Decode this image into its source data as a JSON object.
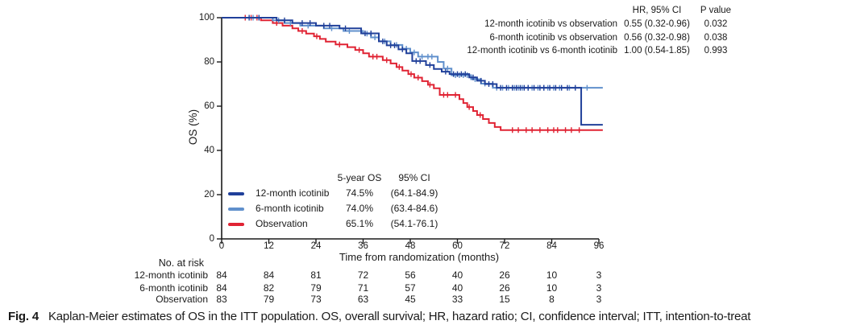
{
  "figure": {
    "caption_label": "Fig. 4",
    "caption_text": "Kaplan-Meier estimates of OS in the ITT population. OS, overall survival; HR, hazard ratio; CI, confidence interval; ITT, intention-to-treat"
  },
  "hr_table": {
    "header_ci": "HR, 95% CI",
    "header_p": "P value",
    "rows": [
      {
        "label": "12-month icotinib vs observation",
        "ci": "0.55 (0.32-0.96)",
        "p": "0.032"
      },
      {
        "label": "6-month icotinib vs observation",
        "ci": "0.56 (0.32-0.98)",
        "p": "0.038"
      },
      {
        "label": "12-month icotinib vs 6-month icotinib",
        "ci": "1.00 (0.54-1.85)",
        "p": "0.993"
      }
    ]
  },
  "legend": {
    "header_os": "5-year OS",
    "header_ci": "95% CI",
    "rows": [
      {
        "name": "12-month icotinib",
        "os": "74.5%",
        "ci": "(64.1-84.9)",
        "color": "#20409a"
      },
      {
        "name": "6-month icotinib",
        "os": "74.0%",
        "ci": "(63.4-84.6)",
        "color": "#6090cc"
      },
      {
        "name": "Observation",
        "os": "65.1%",
        "ci": "(54.1-76.1)",
        "color": "#e02333"
      }
    ]
  },
  "at_risk": {
    "title": "No. at risk",
    "rows": [
      {
        "label": "12-month icotinib",
        "counts": [
          84,
          84,
          81,
          72,
          56,
          40,
          26,
          10,
          3
        ]
      },
      {
        "label": "6-month icotinib",
        "counts": [
          84,
          82,
          79,
          71,
          57,
          40,
          26,
          10,
          3
        ]
      },
      {
        "label": "Observation",
        "counts": [
          83,
          79,
          73,
          63,
          45,
          33,
          15,
          8,
          3
        ]
      }
    ]
  },
  "chart_data": {
    "type": "line",
    "subtype": "kaplan-meier-step",
    "title": "",
    "xlabel": "Time from randomization (months)",
    "ylabel": "OS (%)",
    "xlim": [
      0,
      96
    ],
    "ylim": [
      0,
      100
    ],
    "x_ticks": [
      0,
      12,
      24,
      36,
      48,
      60,
      72,
      84,
      96
    ],
    "y_ticks": [
      0,
      20,
      40,
      60,
      80,
      100
    ],
    "grid": false,
    "end_month": 97,
    "axis_color": "#1a1a1a",
    "series": [
      {
        "name": "12-month icotinib",
        "color": "#20409a",
        "five_year_os": 74.5,
        "steps": [
          [
            0,
            100
          ],
          [
            14,
            98.8
          ],
          [
            18,
            97.6
          ],
          [
            24,
            96.4
          ],
          [
            30,
            95.2
          ],
          [
            35.5,
            92.9
          ],
          [
            40,
            89.3
          ],
          [
            42,
            87.5
          ],
          [
            45,
            85.7
          ],
          [
            47,
            83.9
          ],
          [
            48.5,
            80.4
          ],
          [
            52,
            78.6
          ],
          [
            54,
            76.8
          ],
          [
            56,
            75.6
          ],
          [
            58,
            74.5
          ],
          [
            63,
            73
          ],
          [
            65,
            71.5
          ],
          [
            67,
            70
          ],
          [
            70,
            68.3
          ],
          [
            91.5,
            51.6
          ]
        ],
        "censors": [
          [
            7,
            100
          ],
          [
            9.5,
            100
          ],
          [
            16,
            98.8
          ],
          [
            20.5,
            97.6
          ],
          [
            22.5,
            97.6
          ],
          [
            26,
            96.4
          ],
          [
            27.5,
            96.4
          ],
          [
            31.5,
            95.2
          ],
          [
            36.5,
            92.9
          ],
          [
            38,
            92.9
          ],
          [
            41,
            89.3
          ],
          [
            43,
            87.5
          ],
          [
            44,
            87.5
          ],
          [
            46,
            85.7
          ],
          [
            49.5,
            80.4
          ],
          [
            50.5,
            80.4
          ],
          [
            53,
            78.6
          ],
          [
            57,
            75.6
          ],
          [
            59,
            74.5
          ],
          [
            60,
            74.5
          ],
          [
            61,
            74.5
          ],
          [
            62,
            74.5
          ],
          [
            64,
            73
          ],
          [
            66,
            71.5
          ],
          [
            68,
            70
          ],
          [
            69,
            70
          ],
          [
            71,
            68.3
          ],
          [
            72.5,
            68.3
          ],
          [
            74,
            68.3
          ],
          [
            75,
            68.3
          ],
          [
            76,
            68.3
          ],
          [
            77,
            68.3
          ],
          [
            78,
            68.3
          ],
          [
            79.5,
            68.3
          ],
          [
            81,
            68.3
          ],
          [
            82,
            68.3
          ],
          [
            83.5,
            68.3
          ],
          [
            85,
            68.3
          ],
          [
            86.5,
            68.3
          ],
          [
            88,
            68.3
          ],
          [
            90,
            68.3
          ]
        ]
      },
      {
        "name": "6-month icotinib",
        "color": "#6090cc",
        "five_year_os": 74.0,
        "steps": [
          [
            0,
            100
          ],
          [
            13,
            98.8
          ],
          [
            16,
            97.6
          ],
          [
            20,
            96.4
          ],
          [
            26,
            95.2
          ],
          [
            31,
            94
          ],
          [
            36,
            92.8
          ],
          [
            38,
            91.1
          ],
          [
            40,
            89.3
          ],
          [
            43,
            87.7
          ],
          [
            46,
            86
          ],
          [
            48,
            84.3
          ],
          [
            50,
            82.4
          ],
          [
            55,
            80
          ],
          [
            56.5,
            77
          ],
          [
            58.5,
            74
          ],
          [
            63.5,
            72.2
          ],
          [
            66,
            70.2
          ],
          [
            69,
            68.3
          ]
        ],
        "censors": [
          [
            8,
            100
          ],
          [
            14.5,
            98.8
          ],
          [
            17.5,
            97.6
          ],
          [
            22,
            96.4
          ],
          [
            28,
            95.2
          ],
          [
            32.5,
            94
          ],
          [
            37,
            92.8
          ],
          [
            39,
            91.1
          ],
          [
            41.5,
            89.3
          ],
          [
            44.5,
            87.7
          ],
          [
            47,
            86
          ],
          [
            49,
            84.3
          ],
          [
            51,
            82.4
          ],
          [
            52.5,
            82.4
          ],
          [
            53.5,
            82.4
          ],
          [
            57.5,
            77
          ],
          [
            59.5,
            74
          ],
          [
            60.5,
            74
          ],
          [
            61.5,
            74
          ],
          [
            62.5,
            74
          ],
          [
            64.5,
            72.2
          ],
          [
            67,
            70.2
          ],
          [
            70,
            68.3
          ],
          [
            71.5,
            68.3
          ],
          [
            73,
            68.3
          ],
          [
            74.5,
            68.3
          ],
          [
            75.5,
            68.3
          ],
          [
            76.5,
            68.3
          ],
          [
            78,
            68.3
          ],
          [
            79,
            68.3
          ],
          [
            80.5,
            68.3
          ],
          [
            82,
            68.3
          ],
          [
            83,
            68.3
          ],
          [
            84.5,
            68.3
          ],
          [
            86,
            68.3
          ],
          [
            88.5,
            68.3
          ],
          [
            93,
            68.3
          ]
        ]
      },
      {
        "name": "Observation",
        "color": "#e02333",
        "five_year_os": 65.1,
        "steps": [
          [
            0,
            100
          ],
          [
            10,
            98.8
          ],
          [
            13,
            97.6
          ],
          [
            15.5,
            96.4
          ],
          [
            18,
            95.2
          ],
          [
            19.5,
            94
          ],
          [
            21.5,
            92.8
          ],
          [
            23.5,
            91.6
          ],
          [
            25,
            90.4
          ],
          [
            26.5,
            89.2
          ],
          [
            29,
            87.9
          ],
          [
            32,
            86.7
          ],
          [
            34,
            85.4
          ],
          [
            36,
            83.9
          ],
          [
            37.5,
            82.4
          ],
          [
            41,
            80.8
          ],
          [
            43,
            79.3
          ],
          [
            44.5,
            77.7
          ],
          [
            46,
            76.1
          ],
          [
            47.5,
            74.5
          ],
          [
            49,
            72.9
          ],
          [
            51,
            71.3
          ],
          [
            52.5,
            69.7
          ],
          [
            54,
            68.1
          ],
          [
            55.5,
            65.1
          ],
          [
            60.5,
            63.2
          ],
          [
            61.5,
            61.4
          ],
          [
            62.5,
            59.6
          ],
          [
            64,
            57.8
          ],
          [
            65,
            56
          ],
          [
            66.5,
            54.2
          ],
          [
            68,
            52.4
          ],
          [
            69.5,
            50.6
          ],
          [
            71,
            49.2
          ]
        ],
        "censors": [
          [
            6,
            100
          ],
          [
            7.5,
            100
          ],
          [
            9,
            100
          ],
          [
            14,
            97.6
          ],
          [
            20.5,
            94
          ],
          [
            24.2,
            91.6
          ],
          [
            30,
            87.9
          ],
          [
            35,
            85.4
          ],
          [
            38.5,
            82.4
          ],
          [
            39.5,
            82.4
          ],
          [
            42,
            80.8
          ],
          [
            45.2,
            77.7
          ],
          [
            48.2,
            74.5
          ],
          [
            50,
            72.9
          ],
          [
            53,
            69.7
          ],
          [
            56.5,
            65.1
          ],
          [
            57.5,
            65.1
          ],
          [
            59.5,
            65.1
          ],
          [
            63,
            59.6
          ],
          [
            65.8,
            56
          ],
          [
            74,
            49.2
          ],
          [
            75.5,
            49.2
          ],
          [
            77.5,
            49.2
          ],
          [
            79,
            49.2
          ],
          [
            81,
            49.2
          ],
          [
            83,
            49.2
          ],
          [
            84.5,
            49.2
          ],
          [
            85.5,
            49.2
          ],
          [
            87.5,
            49.2
          ],
          [
            89,
            49.2
          ],
          [
            91,
            49.2
          ]
        ]
      }
    ]
  }
}
